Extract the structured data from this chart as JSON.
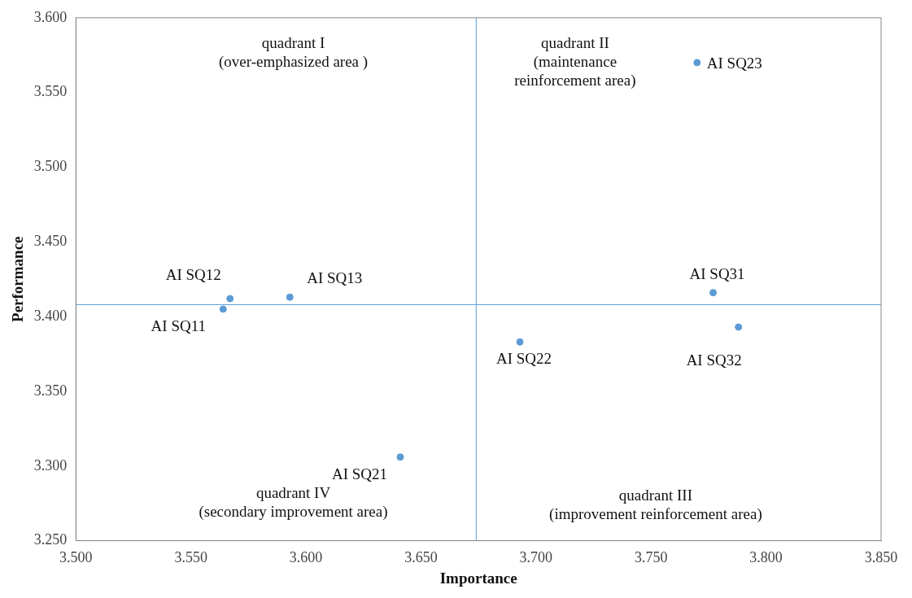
{
  "chart_data": {
    "type": "scatter",
    "xlabel": "Importance",
    "ylabel": "Performance",
    "x": [
      3.564,
      3.567,
      3.593,
      3.641,
      3.693,
      3.77,
      3.777,
      3.788
    ],
    "values": [
      3.405,
      3.412,
      3.413,
      3.306,
      3.383,
      3.57,
      3.416,
      3.393
    ],
    "color": "#5b9bd5",
    "marker": "circle",
    "grid": false,
    "legend": false,
    "xlim": [
      3.5,
      3.85
    ],
    "xticks": [
      {
        "value": 3.5,
        "label": "3.500"
      },
      {
        "value": 3.55,
        "label": "3.550"
      },
      {
        "value": 3.6,
        "label": "3.600"
      },
      {
        "value": 3.65,
        "label": "3.650"
      },
      {
        "value": 3.7,
        "label": "3.700"
      },
      {
        "value": 3.75,
        "label": "3.750"
      },
      {
        "value": 3.8,
        "label": "3.800"
      },
      {
        "value": 3.85,
        "label": "3.850"
      }
    ],
    "ylim": [
      3.25,
      3.6
    ],
    "yticks": [
      {
        "value": 3.25,
        "label": "3.250"
      },
      {
        "value": 3.3,
        "label": "3.300"
      },
      {
        "value": 3.35,
        "label": "3.350"
      },
      {
        "value": 3.4,
        "label": "3.400"
      },
      {
        "value": 3.45,
        "label": "3.450"
      },
      {
        "value": 3.5,
        "label": "3.500"
      },
      {
        "value": 3.55,
        "label": "3.550"
      },
      {
        "value": 3.6,
        "label": "3.600"
      }
    ],
    "ref_lines": [
      {
        "axis": "x",
        "value": 3.674,
        "color": "#5b9bd5"
      },
      {
        "axis": "y",
        "value": 3.408,
        "color": "#5b9bd5"
      }
    ],
    "annotations": [
      {
        "text": "AI SQ11",
        "x": 3.564,
        "y": 3.405
      },
      {
        "text": "AI SQ12",
        "x": 3.567,
        "y": 3.412
      },
      {
        "text": "AI SQ13",
        "x": 3.593,
        "y": 3.413
      },
      {
        "text": "AI SQ21",
        "x": 3.641,
        "y": 3.306
      },
      {
        "text": "AI SQ22",
        "x": 3.693,
        "y": 3.383
      },
      {
        "text": "AI SQ23",
        "x": 3.77,
        "y": 3.57
      },
      {
        "text": "AI SQ31",
        "x": 3.777,
        "y": 3.416
      },
      {
        "text": "AI SQ32",
        "x": 3.788,
        "y": 3.393
      },
      "quadrant I\n(over-emphasized area )",
      "quadrant II\n(maintenance\nreinforcement area)",
      "quadrant III\n(improvement reinforcement area)",
      "quadrant IV\n(secondary improvement area)"
    ]
  }
}
